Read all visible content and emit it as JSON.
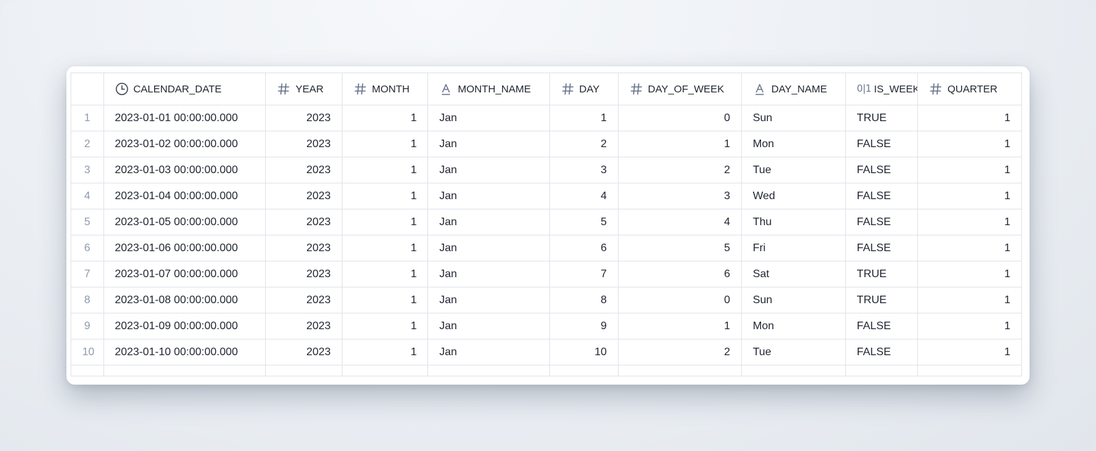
{
  "columns": [
    {
      "name": "CALENDAR_DATE",
      "type_icon": "clock-icon"
    },
    {
      "name": "YEAR",
      "type_icon": "hash-icon"
    },
    {
      "name": "MONTH",
      "type_icon": "hash-icon"
    },
    {
      "name": "MONTH_NAME",
      "type_icon": "text-type-icon"
    },
    {
      "name": "DAY",
      "type_icon": "hash-icon"
    },
    {
      "name": "DAY_OF_WEEK",
      "type_icon": "hash-icon"
    },
    {
      "name": "DAY_NAME",
      "type_icon": "text-type-icon"
    },
    {
      "name": "IS_WEEKEND",
      "type_icon": "boolean-icon",
      "icon_text": "0|1"
    },
    {
      "name": "QUARTER",
      "type_icon": "hash-icon"
    }
  ],
  "rows": [
    {
      "num": "1",
      "cells": [
        "2023-01-01 00:00:00.000",
        "2023",
        "1",
        "Jan",
        "1",
        "0",
        "Sun",
        "TRUE",
        "1"
      ]
    },
    {
      "num": "2",
      "cells": [
        "2023-01-02 00:00:00.000",
        "2023",
        "1",
        "Jan",
        "2",
        "1",
        "Mon",
        "FALSE",
        "1"
      ]
    },
    {
      "num": "3",
      "cells": [
        "2023-01-03 00:00:00.000",
        "2023",
        "1",
        "Jan",
        "3",
        "2",
        "Tue",
        "FALSE",
        "1"
      ]
    },
    {
      "num": "4",
      "cells": [
        "2023-01-04 00:00:00.000",
        "2023",
        "1",
        "Jan",
        "4",
        "3",
        "Wed",
        "FALSE",
        "1"
      ]
    },
    {
      "num": "5",
      "cells": [
        "2023-01-05 00:00:00.000",
        "2023",
        "1",
        "Jan",
        "5",
        "4",
        "Thu",
        "FALSE",
        "1"
      ]
    },
    {
      "num": "6",
      "cells": [
        "2023-01-06 00:00:00.000",
        "2023",
        "1",
        "Jan",
        "6",
        "5",
        "Fri",
        "FALSE",
        "1"
      ]
    },
    {
      "num": "7",
      "cells": [
        "2023-01-07 00:00:00.000",
        "2023",
        "1",
        "Jan",
        "7",
        "6",
        "Sat",
        "TRUE",
        "1"
      ]
    },
    {
      "num": "8",
      "cells": [
        "2023-01-08 00:00:00.000",
        "2023",
        "1",
        "Jan",
        "8",
        "0",
        "Sun",
        "TRUE",
        "1"
      ]
    },
    {
      "num": "9",
      "cells": [
        "2023-01-09 00:00:00.000",
        "2023",
        "1",
        "Jan",
        "9",
        "1",
        "Mon",
        "FALSE",
        "1"
      ]
    },
    {
      "num": "10",
      "cells": [
        "2023-01-10 00:00:00.000",
        "2023",
        "1",
        "Jan",
        "10",
        "2",
        "Tue",
        "FALSE",
        "1"
      ]
    }
  ],
  "colors": {
    "border": "#dfe3ea",
    "text": "#1f2430",
    "row_number": "#8f9aae",
    "icon": "#6b778c"
  }
}
